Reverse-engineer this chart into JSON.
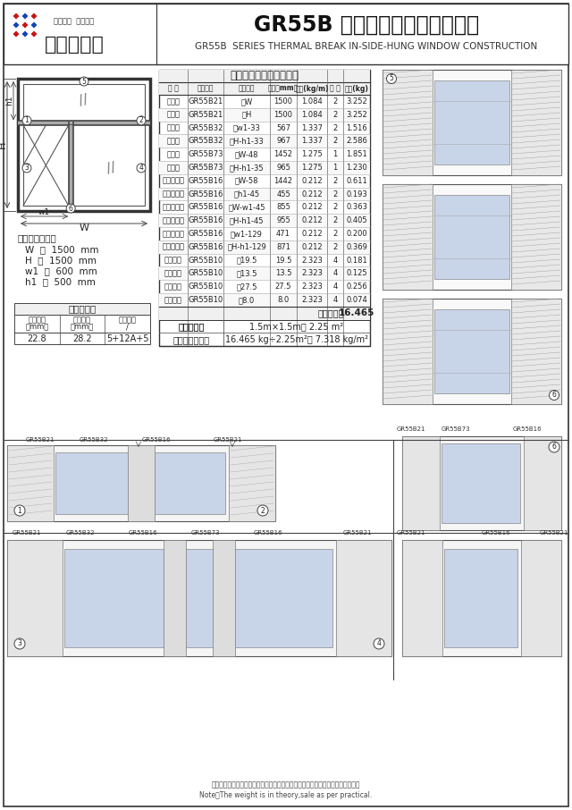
{
  "title_cn": "GR55B 系列隔热内平开窗结构图",
  "title_en": "GR55B  SERIES THERMAL BREAK IN-SIDE-HUNG WINDOW CONSTRUCTION",
  "company_name": "新大地铝业",
  "company_slogan1": "严谨执着  精品承诺",
  "table_title": "用料明细表（仅供参考）",
  "table_headers": [
    "名 称",
    "型材代号",
    "长度公式",
    "长度（mm）",
    "米重(kg/m)",
    "数 量",
    "重量(kg)"
  ],
  "table_rows": [
    [
      "横边框",
      "GR55B21",
      "＝W",
      "1500",
      "1.084",
      "2",
      "3.252"
    ],
    [
      "竖边框",
      "GR55B21",
      "＝H",
      "1500",
      "1.084",
      "2",
      "3.252"
    ],
    [
      "横窗扇",
      "GR55B32",
      "＝w1-33",
      "567",
      "1.337",
      "2",
      "1.516"
    ],
    [
      "竖窗扇",
      "GR55B32",
      "＝H-h1-33",
      "967",
      "1.337",
      "2",
      "2.586"
    ],
    [
      "横中捆",
      "GR55B73",
      "＝W-48",
      "1452",
      "1.275",
      "1",
      "1.851"
    ],
    [
      "竖中捆",
      "GR55B73",
      "＝H-h1-35",
      "965",
      "1.275",
      "1",
      "1.230"
    ],
    [
      "上固压线横",
      "GR55B16",
      "＝W-58",
      "1442",
      "0.212",
      "2",
      "0.611"
    ],
    [
      "上固压线竖",
      "GR55B16",
      "＝h1-45",
      "455",
      "0.212",
      "2",
      "0.193"
    ],
    [
      "侧固压线横",
      "GR55B16",
      "＝W-w1-45",
      "855",
      "0.212",
      "2",
      "0.363"
    ],
    [
      "侧固压线竖",
      "GR55B16",
      "＝H-h1-45",
      "955",
      "0.212",
      "2",
      "0.405"
    ],
    [
      "窗扇压线横",
      "GR55B16",
      "＝w1-129",
      "471",
      "0.212",
      "2",
      "0.200"
    ],
    [
      "窗扇压线竖",
      "GR55B16",
      "＝H-h1-129",
      "871",
      "0.212",
      "2",
      "0.369"
    ],
    [
      "框角码大",
      "GR55B10",
      "＝19.5",
      "19.5",
      "2.323",
      "4",
      "0.181"
    ],
    [
      "框角码小",
      "GR55B10",
      "＝13.5",
      "13.5",
      "2.323",
      "4",
      "0.125"
    ],
    [
      "扇角码大",
      "GR55B10",
      "＝27.5",
      "27.5",
      "2.323",
      "4",
      "0.256"
    ],
    [
      "扇角码小",
      "GR55B10",
      "＝8.0",
      "8.0",
      "2.323",
      "4",
      "0.074"
    ]
  ],
  "total_weight": "16.465",
  "door_area": "1.5m×1.5m＝ 2.25 m²",
  "unit_weight": "16.465 kg÷2.25m²＝ 7.318 kg/m²",
  "glass_table_title": "玻璃适配表",
  "glass_h1": "压线宽度",
  "glass_h1b": "（mm）",
  "glass_h2": "玻璃槽口",
  "glass_h2b": "（mm）",
  "glass_h3": "玻璃规格",
  "glass_h3b": "/",
  "glass_row": [
    "22.8",
    "28.2",
    "5+12A+5"
  ],
  "params_title": "窗型参数设置：",
  "param_W": "W  ＝  1500  mm",
  "param_H": "H  ＝  1500  mm",
  "param_w1": "w1  ＝  600  mm",
  "param_h1": "h1  ＝  500  mm",
  "total_label": "合计重量：",
  "area_label": "门窗面积：",
  "unit_label": "单位面积重量：",
  "note_cn": "注：图表中标明的重量为不含包装物的理论重量，客户订货以实际过磅重量为准。",
  "note_en": "Note：The weight is in theory,sale as per practical.",
  "bg_color": "#ffffff",
  "line_color": "#444444",
  "light_gray": "#f0f0f0",
  "mid_gray": "#cccccc"
}
